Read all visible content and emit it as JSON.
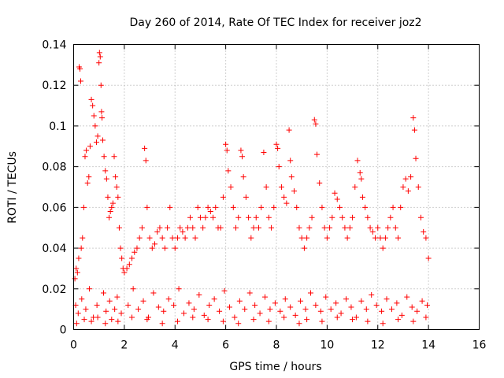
{
  "chart_data": {
    "type": "scatter",
    "title": "Day 260 of 2014, Rate Of TEC Index for receiver joz2",
    "xlabel": "GPS time / hours",
    "ylabel": "ROTI / TECUs",
    "xlim": [
      0,
      16
    ],
    "ylim": [
      0,
      0.14
    ],
    "x_ticks": [
      0,
      2,
      4,
      6,
      8,
      10,
      12,
      14,
      16
    ],
    "x_tick_labels": [
      "0",
      "2",
      "4",
      "6",
      "8",
      "10",
      "12",
      "14",
      "16"
    ],
    "y_ticks": [
      0,
      0.02,
      0.04,
      0.06,
      0.08,
      0.1,
      0.12,
      0.14
    ],
    "y_tick_labels": [
      "0",
      "0.02",
      "0.04",
      "0.06",
      "0.08",
      "0.1",
      "0.12",
      "0.14"
    ],
    "grid": true,
    "marker": "+",
    "color": "#ff0000",
    "series": [
      {
        "name": "ROTI",
        "x": [
          0.05,
          0.1,
          0.15,
          0.2,
          0.22,
          0.25,
          0.28,
          0.3,
          0.35,
          0.4,
          0.45,
          0.5,
          0.55,
          0.6,
          0.65,
          0.7,
          0.75,
          0.8,
          0.85,
          0.9,
          0.95,
          1.0,
          1.02,
          1.05,
          1.08,
          1.1,
          1.12,
          1.15,
          1.2,
          1.25,
          1.3,
          1.35,
          1.4,
          1.45,
          1.5,
          1.55,
          1.6,
          1.65,
          1.7,
          1.75,
          1.8,
          1.85,
          1.9,
          1.95,
          2.0,
          2.1,
          2.2,
          2.3,
          2.4,
          2.5,
          2.6,
          2.7,
          2.8,
          2.85,
          2.9,
          3.0,
          3.1,
          3.2,
          3.3,
          3.4,
          3.5,
          3.6,
          3.7,
          3.8,
          3.9,
          4.0,
          4.1,
          4.2,
          4.3,
          4.4,
          4.5,
          4.6,
          4.7,
          4.8,
          4.9,
          5.0,
          5.1,
          5.2,
          5.3,
          5.4,
          5.5,
          5.6,
          5.7,
          5.8,
          5.9,
          6.0,
          6.05,
          6.1,
          6.2,
          6.3,
          6.4,
          6.5,
          6.6,
          6.65,
          6.7,
          6.8,
          6.9,
          7.0,
          7.1,
          7.2,
          7.3,
          7.4,
          7.5,
          7.6,
          7.7,
          7.8,
          7.9,
          8.0,
          8.05,
          8.1,
          8.2,
          8.3,
          8.4,
          8.5,
          8.55,
          8.6,
          8.7,
          8.8,
          8.9,
          9.0,
          9.1,
          9.2,
          9.3,
          9.4,
          9.5,
          9.55,
          9.6,
          9.7,
          9.8,
          9.9,
          10.0,
          10.1,
          10.2,
          10.3,
          10.4,
          10.5,
          10.6,
          10.7,
          10.8,
          10.9,
          11.0,
          11.1,
          11.2,
          11.3,
          11.35,
          11.4,
          11.5,
          11.6,
          11.7,
          11.8,
          11.9,
          12.0,
          12.1,
          12.2,
          12.3,
          12.4,
          12.5,
          12.6,
          12.7,
          12.8,
          12.9,
          13.0,
          13.1,
          13.2,
          13.3,
          13.4,
          13.45,
          13.5,
          13.6,
          13.7,
          13.8,
          13.9,
          14.0,
          0.08,
          0.18,
          0.32,
          0.48,
          0.62,
          0.78,
          0.92,
          1.18,
          1.28,
          1.42,
          1.62,
          1.72,
          1.88,
          2.15,
          2.35,
          2.55,
          2.75,
          2.95,
          3.15,
          3.35,
          3.55,
          3.75,
          3.95,
          4.15,
          4.35,
          4.55,
          4.75,
          4.95,
          5.15,
          5.35,
          5.55,
          5.75,
          5.95,
          6.15,
          6.35,
          6.55,
          6.75,
          6.95,
          7.15,
          7.35,
          7.55,
          7.75,
          7.95,
          8.15,
          8.35,
          8.55,
          8.75,
          8.95,
          9.15,
          9.35,
          9.55,
          9.75,
          9.95,
          10.15,
          10.35,
          10.55,
          10.75,
          10.95,
          11.15,
          11.35,
          11.55,
          11.75,
          11.95,
          12.15,
          12.35,
          12.55,
          12.75,
          12.95,
          13.15,
          13.35,
          13.55,
          13.75,
          13.95,
          0.12,
          0.42,
          0.7,
          0.95,
          1.25,
          1.5,
          1.75,
          2.3,
          2.9,
          3.5,
          4.1,
          4.7,
          5.3,
          5.9,
          6.5,
          7.1,
          7.7,
          8.3,
          8.9,
          9.2,
          9.8,
          10.4,
          11.0,
          11.6,
          12.2,
          12.8,
          13.4,
          13.9
        ],
        "y": [
          0.025,
          0.03,
          0.028,
          0.035,
          0.129,
          0.128,
          0.122,
          0.04,
          0.045,
          0.06,
          0.085,
          0.088,
          0.072,
          0.075,
          0.09,
          0.113,
          0.11,
          0.105,
          0.1,
          0.092,
          0.095,
          0.131,
          0.136,
          0.134,
          0.12,
          0.107,
          0.104,
          0.093,
          0.085,
          0.078,
          0.074,
          0.065,
          0.055,
          0.058,
          0.06,
          0.062,
          0.085,
          0.075,
          0.07,
          0.065,
          0.05,
          0.04,
          0.035,
          0.03,
          0.028,
          0.03,
          0.032,
          0.035,
          0.038,
          0.04,
          0.045,
          0.05,
          0.089,
          0.083,
          0.06,
          0.045,
          0.04,
          0.042,
          0.048,
          0.05,
          0.045,
          0.04,
          0.05,
          0.06,
          0.045,
          0.04,
          0.045,
          0.05,
          0.048,
          0.045,
          0.05,
          0.055,
          0.05,
          0.045,
          0.06,
          0.055,
          0.05,
          0.055,
          0.06,
          0.058,
          0.055,
          0.06,
          0.05,
          0.05,
          0.065,
          0.091,
          0.088,
          0.078,
          0.07,
          0.06,
          0.05,
          0.055,
          0.088,
          0.085,
          0.075,
          0.065,
          0.055,
          0.045,
          0.05,
          0.055,
          0.05,
          0.06,
          0.087,
          0.07,
          0.055,
          0.05,
          0.06,
          0.091,
          0.089,
          0.08,
          0.07,
          0.065,
          0.062,
          0.098,
          0.083,
          0.075,
          0.068,
          0.06,
          0.05,
          0.045,
          0.04,
          0.045,
          0.05,
          0.055,
          0.103,
          0.101,
          0.086,
          0.072,
          0.06,
          0.05,
          0.045,
          0.05,
          0.055,
          0.067,
          0.064,
          0.06,
          0.055,
          0.05,
          0.045,
          0.05,
          0.055,
          0.07,
          0.083,
          0.077,
          0.074,
          0.065,
          0.06,
          0.055,
          0.05,
          0.048,
          0.045,
          0.05,
          0.045,
          0.04,
          0.045,
          0.05,
          0.055,
          0.06,
          0.05,
          0.045,
          0.06,
          0.07,
          0.074,
          0.068,
          0.075,
          0.104,
          0.098,
          0.084,
          0.07,
          0.055,
          0.048,
          0.045,
          0.035,
          0.012,
          0.008,
          0.015,
          0.01,
          0.02,
          0.006,
          0.012,
          0.018,
          0.009,
          0.014,
          0.01,
          0.016,
          0.008,
          0.012,
          0.02,
          0.01,
          0.014,
          0.006,
          0.018,
          0.011,
          0.009,
          0.015,
          0.012,
          0.02,
          0.008,
          0.013,
          0.01,
          0.017,
          0.007,
          0.012,
          0.015,
          0.009,
          0.019,
          0.011,
          0.006,
          0.014,
          0.01,
          0.018,
          0.012,
          0.008,
          0.016,
          0.01,
          0.013,
          0.009,
          0.015,
          0.011,
          0.007,
          0.014,
          0.01,
          0.018,
          0.012,
          0.009,
          0.016,
          0.01,
          0.013,
          0.008,
          0.015,
          0.011,
          0.006,
          0.014,
          0.01,
          0.017,
          0.012,
          0.009,
          0.015,
          0.01,
          0.013,
          0.007,
          0.016,
          0.011,
          0.009,
          0.014,
          0.012,
          0.003,
          0.005,
          0.004,
          0.006,
          0.003,
          0.005,
          0.004,
          0.006,
          0.005,
          0.003,
          0.004,
          0.006,
          0.005,
          0.004,
          0.003,
          0.005,
          0.004,
          0.006,
          0.003,
          0.005,
          0.004,
          0.006,
          0.005,
          0.004,
          0.003,
          0.005,
          0.004,
          0.006
        ]
      }
    ]
  }
}
